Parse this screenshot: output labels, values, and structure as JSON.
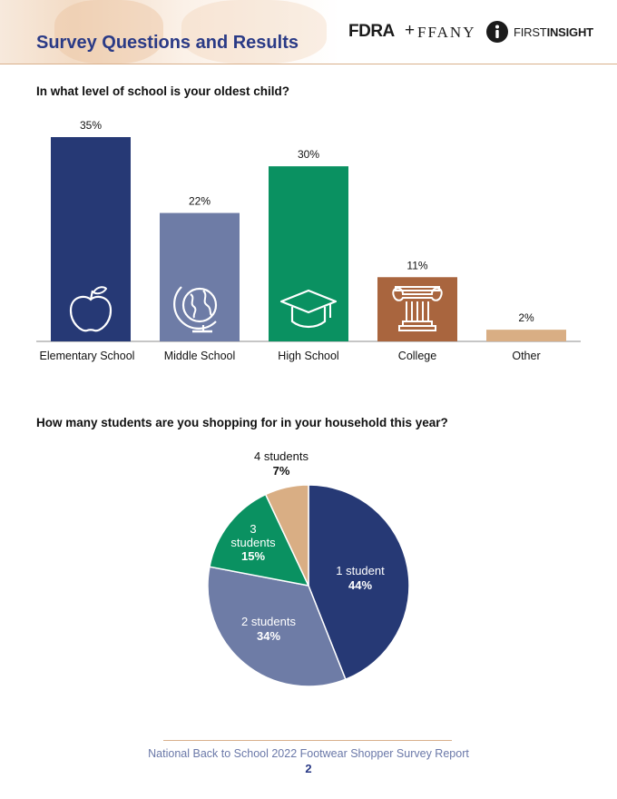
{
  "header": {
    "title": "Survey Questions and Results",
    "logos": {
      "fdra": "FDRA",
      "plus": "+",
      "ftany": "FFANY",
      "fi_first": "FIRST",
      "fi_insight": "INSIGHT"
    }
  },
  "chart_data": [
    {
      "type": "bar",
      "title": "In what level of school is your oldest child?",
      "categories": [
        "Elementary School",
        "Middle School",
        "High School",
        "College",
        "Other"
      ],
      "values": [
        35,
        22,
        30,
        11,
        2
      ],
      "value_labels": [
        "35%",
        "22%",
        "30%",
        "11%",
        "2%"
      ],
      "colors": [
        "#263975",
        "#6e7ca6",
        "#0a9161",
        "#a9653e",
        "#d9ae84"
      ],
      "icons": [
        "apple-icon",
        "globe-icon",
        "graduation-cap-icon",
        "column-icon",
        ""
      ],
      "ylim": [
        0,
        35
      ],
      "grid": false
    },
    {
      "type": "pie",
      "title": "How many students are you shopping for in your household this year?",
      "slices": [
        {
          "label": "1 student",
          "value": 44,
          "value_label": "44%",
          "color": "#263975"
        },
        {
          "label": "2 students",
          "value": 34,
          "value_label": "34%",
          "color": "#6e7ca6"
        },
        {
          "label": "3 students",
          "value": 15,
          "value_label": "15%",
          "color": "#0a9161"
        },
        {
          "label": "4 students",
          "value": 7,
          "value_label": "7%",
          "color": "#d9ae84"
        }
      ]
    }
  ],
  "footer": {
    "text": "National Back to School 2022 Footwear Shopper Survey Report",
    "page": "2"
  }
}
